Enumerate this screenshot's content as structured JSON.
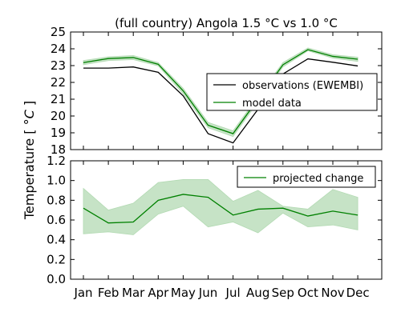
{
  "chart_data": [
    {
      "type": "line",
      "title": "(full country) Angola 1.5 °C vs 1.0 °C",
      "categories": [
        "Jan",
        "Feb",
        "Mar",
        "Apr",
        "May",
        "Jun",
        "Jul",
        "Aug",
        "Sep",
        "Oct",
        "Nov",
        "Dec"
      ],
      "ylim": [
        18,
        25
      ],
      "yticks": [
        18,
        19,
        20,
        21,
        22,
        23,
        24,
        25
      ],
      "grid": false,
      "legend_position": "center-right",
      "series": [
        {
          "name": "observations (EWEMBI)",
          "color": "#000000",
          "values": [
            22.85,
            22.85,
            22.92,
            22.6,
            21.2,
            18.95,
            18.4,
            20.4,
            22.5,
            23.4,
            23.2,
            22.98
          ]
        },
        {
          "name": "model data",
          "color": "#008000",
          "band_color": "#b3dab3",
          "values": [
            23.18,
            23.42,
            23.48,
            23.08,
            21.5,
            19.45,
            18.95,
            21.0,
            23.05,
            23.95,
            23.55,
            23.38
          ],
          "band_lower": [
            23.05,
            23.3,
            23.36,
            22.98,
            21.32,
            19.3,
            18.78,
            20.85,
            22.92,
            23.88,
            23.45,
            23.25
          ],
          "band_upper": [
            23.3,
            23.52,
            23.6,
            23.18,
            21.65,
            19.62,
            19.12,
            21.15,
            23.18,
            24.05,
            23.65,
            23.5
          ]
        }
      ]
    },
    {
      "type": "line",
      "categories": [
        "Jan",
        "Feb",
        "Mar",
        "Apr",
        "May",
        "Jun",
        "Jul",
        "Aug",
        "Sep",
        "Oct",
        "Nov",
        "Dec"
      ],
      "ylim": [
        0.0,
        1.2
      ],
      "yticks": [
        "0.0",
        "0.2",
        "0.4",
        "0.6",
        "0.8",
        "1.0",
        "1.2"
      ],
      "grid": false,
      "legend_position": "top-right",
      "series": [
        {
          "name": "projected change",
          "color": "#008000",
          "band_color": "#b3dab3",
          "values": [
            0.72,
            0.57,
            0.58,
            0.8,
            0.86,
            0.83,
            0.65,
            0.71,
            0.72,
            0.64,
            0.69,
            0.65
          ],
          "band_lower": [
            0.46,
            0.48,
            0.45,
            0.66,
            0.74,
            0.53,
            0.58,
            0.47,
            0.67,
            0.53,
            0.55,
            0.5
          ],
          "band_upper": [
            0.92,
            0.7,
            0.77,
            0.98,
            1.01,
            1.01,
            0.79,
            0.9,
            0.74,
            0.71,
            0.91,
            0.83
          ]
        }
      ]
    }
  ],
  "ylabel": "Temperature [ °C ]",
  "ylabel_prefix": "Temperature [ °",
  "ylabel_unit": "C",
  "ylabel_suffix": " ]"
}
